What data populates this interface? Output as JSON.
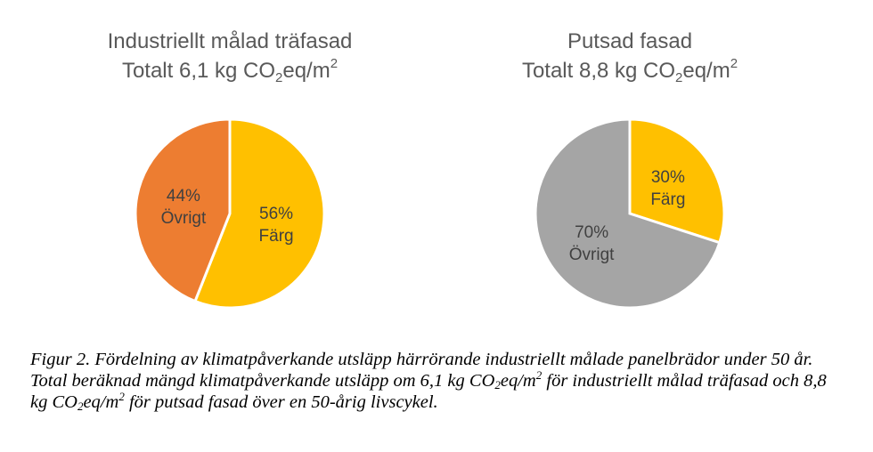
{
  "chart_data": [
    {
      "type": "pie",
      "title": "Industriellt målad träfasad",
      "subtitle": {
        "prefix": "Totalt 6,1 kg CO",
        "sub": "2",
        "mid": "eq/m",
        "sup": "2"
      },
      "slices": [
        {
          "name": "Färg",
          "percent_label": "56%",
          "value": 56,
          "color": "#FFC000"
        },
        {
          "name": "Övrigt",
          "percent_label": "44%",
          "value": 44,
          "color": "#ED7D31"
        }
      ]
    },
    {
      "type": "pie",
      "title": "Putsad fasad",
      "subtitle": {
        "prefix": "Totalt 8,8 kg CO",
        "sub": "2",
        "mid": "eq/m",
        "sup": "2"
      },
      "slices": [
        {
          "name": "Färg",
          "percent_label": "30%",
          "value": 30,
          "color": "#FFC000"
        },
        {
          "name": "Övrigt",
          "percent_label": "70%",
          "value": 70,
          "color": "#A5A5A5"
        }
      ]
    }
  ],
  "caption": {
    "p1": "Figur 2. Fördelning av klimatpåverkande utsläpp härrörande industriellt målade panelbrädor under 50 år. Total beräknad mängd klimatpåverkande utsläpp om 6,1 kg CO",
    "s1": "2",
    "p2": "eq/m",
    "u1": "2",
    "p3": " för industriellt målad träfasad och 8,8 kg CO",
    "s2": "2",
    "p4": "eq/m",
    "u2": "2",
    "p5": " för putsad fasad över en 50-årig livscykel."
  }
}
